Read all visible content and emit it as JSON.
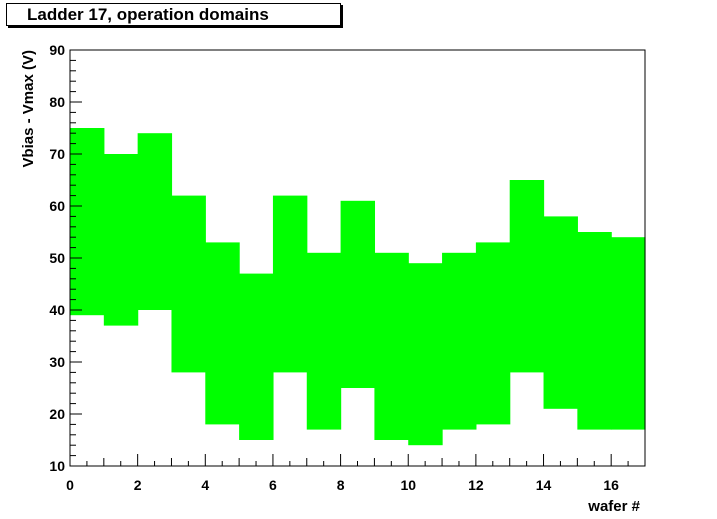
{
  "chart_data": {
    "type": "area",
    "title": "Ladder 17, operation domains",
    "xlabel": "wafer #",
    "ylabel": "Vbias - Vmax (V)",
    "xlim": [
      0,
      17
    ],
    "ylim": [
      10,
      90
    ],
    "x_ticks": [
      0,
      2,
      4,
      6,
      8,
      10,
      12,
      14,
      16
    ],
    "y_ticks": [
      10,
      20,
      30,
      40,
      50,
      60,
      70,
      80,
      90
    ],
    "grid": false,
    "fill_color": "#00ff00",
    "bins": [
      {
        "wafer": 0,
        "low": 39,
        "high": 75
      },
      {
        "wafer": 1,
        "low": 37,
        "high": 70
      },
      {
        "wafer": 2,
        "low": 40,
        "high": 74
      },
      {
        "wafer": 3,
        "low": 28,
        "high": 62
      },
      {
        "wafer": 4,
        "low": 18,
        "high": 53
      },
      {
        "wafer": 5,
        "low": 15,
        "high": 47
      },
      {
        "wafer": 6,
        "low": 28,
        "high": 62
      },
      {
        "wafer": 7,
        "low": 17,
        "high": 51
      },
      {
        "wafer": 8,
        "low": 25,
        "high": 61
      },
      {
        "wafer": 9,
        "low": 15,
        "high": 51
      },
      {
        "wafer": 10,
        "low": 14,
        "high": 49
      },
      {
        "wafer": 11,
        "low": 17,
        "high": 51
      },
      {
        "wafer": 12,
        "low": 18,
        "high": 53
      },
      {
        "wafer": 13,
        "low": 28,
        "high": 65
      },
      {
        "wafer": 14,
        "low": 21,
        "high": 58
      },
      {
        "wafer": 15,
        "low": 17,
        "high": 55
      },
      {
        "wafer": 16,
        "low": 17,
        "high": 54
      }
    ]
  }
}
